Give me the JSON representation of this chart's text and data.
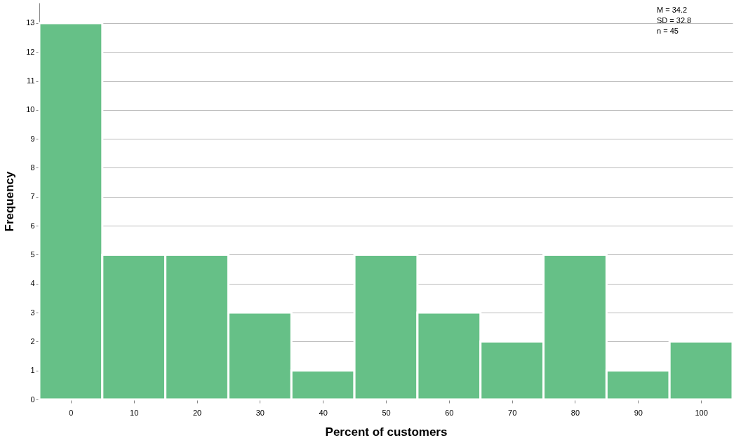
{
  "chart_data": {
    "type": "histogram",
    "xlabel": "Percent of customers",
    "ylabel": "Frequency",
    "bins": [
      -5,
      5,
      15,
      25,
      35,
      45,
      55,
      65,
      75,
      85,
      95,
      105
    ],
    "values": [
      13,
      5,
      5,
      3,
      1,
      5,
      3,
      2,
      5,
      1,
      2
    ],
    "color": "#66c087",
    "xlim": [
      -5,
      105
    ],
    "xticks": [
      0,
      10,
      20,
      30,
      40,
      50,
      60,
      70,
      80,
      90,
      100
    ],
    "ylim": [
      0,
      13.7
    ],
    "yticks": [
      0,
      1,
      2,
      3,
      4,
      5,
      6,
      7,
      8,
      9,
      10,
      11,
      12,
      13
    ],
    "grid": "y",
    "annotations": [
      "M = 34.2",
      "SD = 32.8",
      "n = 45"
    ]
  }
}
